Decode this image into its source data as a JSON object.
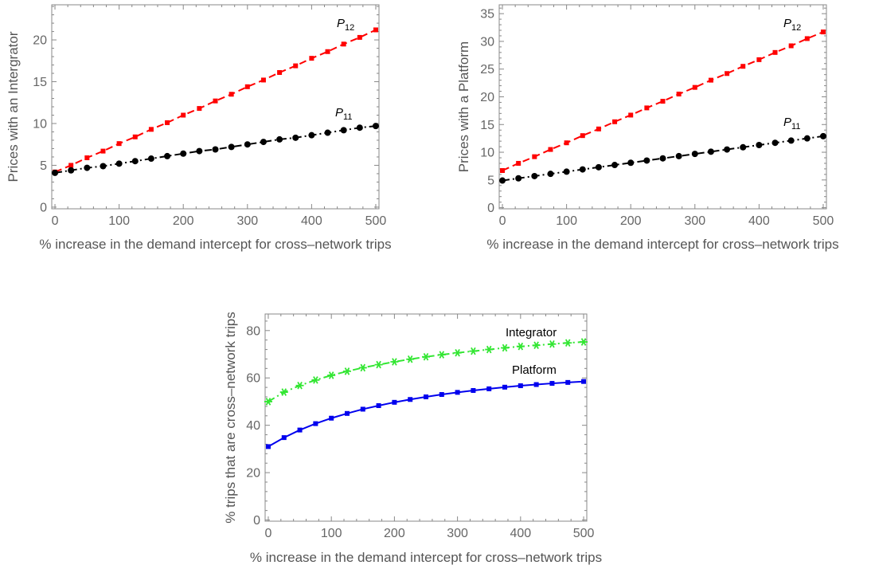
{
  "chart_data": [
    {
      "type": "line",
      "xlabel": "% increase in the demand intercept for cross–network trips",
      "ylabel": "Prices with an Intergrator",
      "xlim": [
        -5,
        505
      ],
      "ylim": [
        -0.2,
        24.2
      ],
      "xticks": [
        0,
        100,
        200,
        300,
        400,
        500
      ],
      "yticks": [
        0,
        5,
        10,
        15,
        20
      ],
      "grid": false,
      "x": [
        0,
        25,
        50,
        75,
        100,
        125,
        150,
        175,
        200,
        225,
        250,
        275,
        300,
        325,
        350,
        375,
        400,
        425,
        450,
        475,
        500
      ],
      "series": [
        {
          "name": "P12",
          "label_main": "P",
          "label_sub": "12",
          "color": "#ff0000",
          "marker": "square",
          "line": "dashed",
          "values": [
            4.2,
            5.0,
            5.9,
            6.7,
            7.6,
            8.4,
            9.3,
            10.1,
            11.0,
            11.8,
            12.7,
            13.5,
            14.4,
            15.2,
            16.1,
            16.9,
            17.8,
            18.6,
            19.5,
            20.3,
            21.2
          ]
        },
        {
          "name": "P11",
          "label_main": "P",
          "label_sub": "11",
          "color": "#000000",
          "marker": "circle",
          "line": "dashdot",
          "values": [
            4.1,
            4.4,
            4.7,
            4.9,
            5.2,
            5.5,
            5.8,
            6.1,
            6.4,
            6.7,
            6.9,
            7.2,
            7.5,
            7.8,
            8.1,
            8.3,
            8.6,
            8.9,
            9.2,
            9.5,
            9.7
          ]
        }
      ]
    },
    {
      "type": "line",
      "xlabel": "% increase in the demand intercept for cross–network trips",
      "ylabel": "Prices with a Platform",
      "xlim": [
        -5,
        505
      ],
      "ylim": [
        -0.2,
        36.6
      ],
      "xticks": [
        0,
        100,
        200,
        300,
        400,
        500
      ],
      "yticks": [
        0,
        5,
        10,
        15,
        20,
        25,
        30,
        35
      ],
      "grid": false,
      "x": [
        0,
        25,
        50,
        75,
        100,
        125,
        150,
        175,
        200,
        225,
        250,
        275,
        300,
        325,
        350,
        375,
        400,
        425,
        450,
        475,
        500
      ],
      "series": [
        {
          "name": "P12",
          "label_main": "P",
          "label_sub": "12",
          "color": "#ff0000",
          "marker": "square",
          "line": "dashed",
          "values": [
            6.7,
            8.0,
            9.2,
            10.5,
            11.7,
            13.0,
            14.2,
            15.5,
            16.7,
            18.0,
            19.2,
            20.5,
            21.7,
            23.0,
            24.2,
            25.5,
            26.7,
            28.0,
            29.2,
            30.5,
            31.7
          ]
        },
        {
          "name": "P11",
          "label_main": "P",
          "label_sub": "11",
          "color": "#000000",
          "marker": "circle",
          "line": "dashdot",
          "values": [
            4.9,
            5.3,
            5.7,
            6.1,
            6.5,
            6.9,
            7.3,
            7.7,
            8.1,
            8.5,
            8.9,
            9.3,
            9.7,
            10.1,
            10.5,
            10.9,
            11.3,
            11.7,
            12.1,
            12.5,
            12.9
          ]
        }
      ]
    },
    {
      "type": "line",
      "xlabel": "% increase in the demand intercept for cross–network trips",
      "ylabel": "% trips that are cross–network trips",
      "xlim": [
        -5,
        505
      ],
      "ylim": [
        -0.5,
        87
      ],
      "xticks": [
        0,
        100,
        200,
        300,
        400,
        500
      ],
      "yticks": [
        0,
        20,
        40,
        60,
        80
      ],
      "grid": false,
      "x": [
        0,
        25,
        50,
        75,
        100,
        125,
        150,
        175,
        200,
        225,
        250,
        275,
        300,
        325,
        350,
        375,
        400,
        425,
        450,
        475,
        500
      ],
      "series": [
        {
          "name": "Integrator",
          "label_main": "Integrator",
          "label_sub": "",
          "color": "#33e633",
          "marker": "star",
          "line": "dashdot",
          "values": [
            50.0,
            54.0,
            56.8,
            59.1,
            61.1,
            62.8,
            64.3,
            65.6,
            66.8,
            67.9,
            68.9,
            69.8,
            70.6,
            71.3,
            72.0,
            72.7,
            73.3,
            73.8,
            74.3,
            74.8,
            75.2
          ]
        },
        {
          "name": "Platform",
          "label_main": "Platform",
          "label_sub": "",
          "color": "#0000ee",
          "marker": "square",
          "line": "solid",
          "values": [
            31.0,
            34.8,
            38.0,
            40.7,
            43.0,
            45.0,
            46.8,
            48.3,
            49.7,
            50.9,
            52.0,
            53.0,
            53.9,
            54.7,
            55.4,
            56.1,
            56.7,
            57.2,
            57.7,
            58.1,
            58.5
          ]
        }
      ]
    }
  ]
}
